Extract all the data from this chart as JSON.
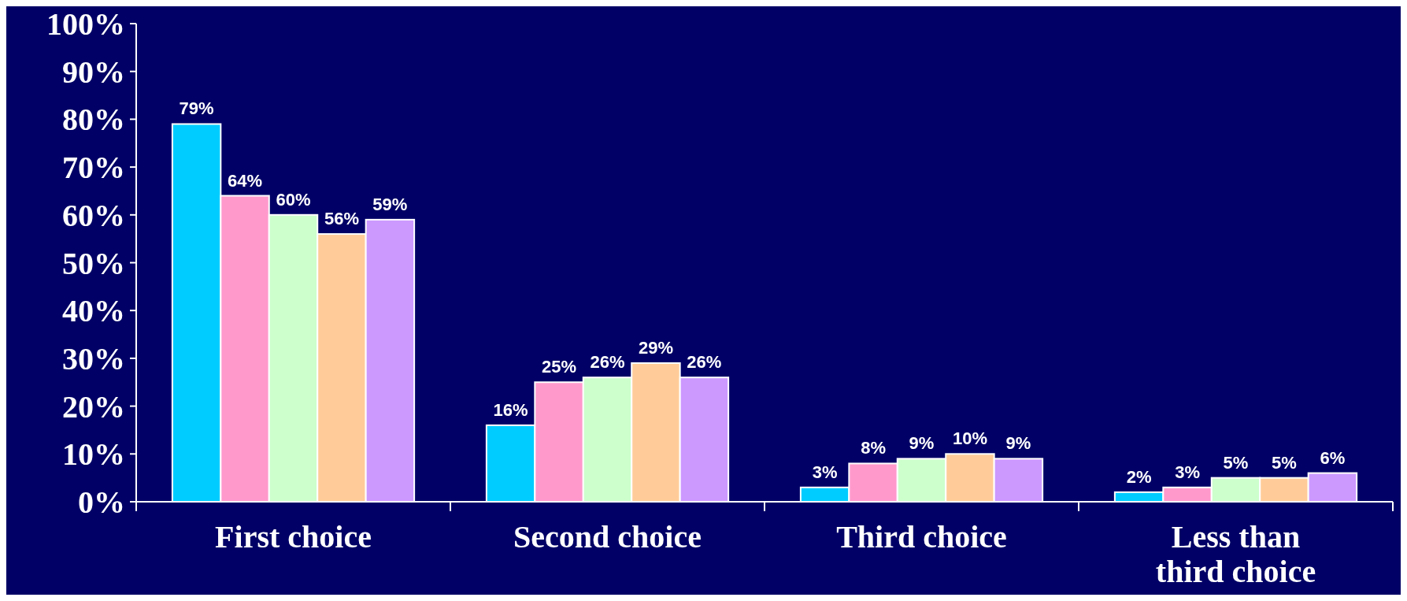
{
  "chart_data": {
    "type": "bar",
    "categories": [
      "First choice",
      "Second choice",
      "Third choice",
      "Less than third choice"
    ],
    "series": [
      {
        "color": "#00ccff",
        "values": [
          79,
          16,
          3,
          2
        ],
        "value_labels": [
          "79%",
          "16%",
          "3%",
          "2%"
        ]
      },
      {
        "color": "#ff99cc",
        "values": [
          64,
          25,
          8,
          3
        ],
        "value_labels": [
          "64%",
          "25%",
          "8%",
          "3%"
        ]
      },
      {
        "color": "#ccffcc",
        "values": [
          60,
          26,
          9,
          5
        ],
        "value_labels": [
          "60%",
          "26%",
          "9%",
          "5%"
        ]
      },
      {
        "color": "#ffcc99",
        "values": [
          56,
          29,
          10,
          5
        ],
        "value_labels": [
          "56%",
          "29%",
          "10%",
          "5%"
        ]
      },
      {
        "color": "#cc99ff",
        "values": [
          59,
          26,
          9,
          6
        ],
        "value_labels": [
          "59%",
          "26%",
          "9%",
          "6%"
        ]
      }
    ],
    "ylim": [
      0,
      100
    ],
    "yticks": [
      {
        "value": 0,
        "label": "0%"
      },
      {
        "value": 10,
        "label": "10%"
      },
      {
        "value": 20,
        "label": "20%"
      },
      {
        "value": 30,
        "label": "30%"
      },
      {
        "value": 40,
        "label": "40%"
      },
      {
        "value": 50,
        "label": "50%"
      },
      {
        "value": 60,
        "label": "60%"
      },
      {
        "value": 70,
        "label": "70%"
      },
      {
        "value": 80,
        "label": "80%"
      },
      {
        "value": 90,
        "label": "90%"
      },
      {
        "value": 100,
        "label": "100%"
      }
    ],
    "grid": false
  }
}
